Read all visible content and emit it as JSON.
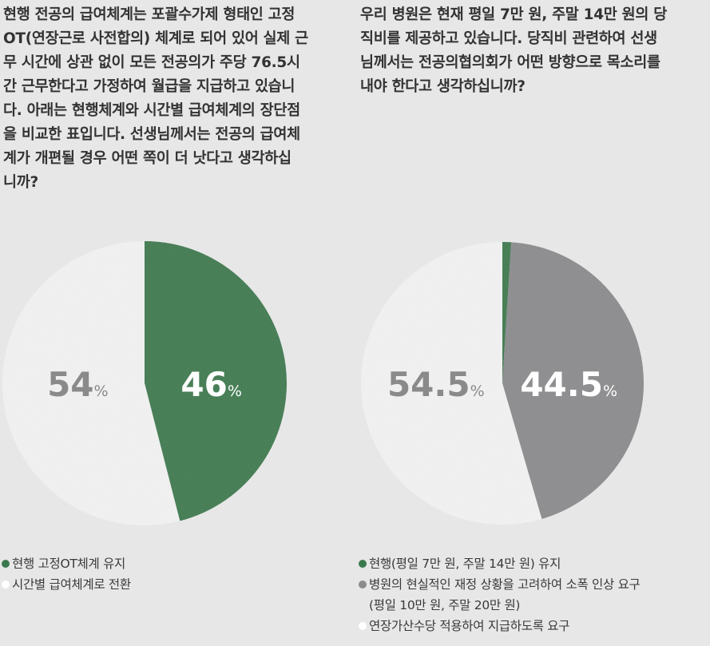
{
  "left": {
    "question_lines": [
      "현행 전공의 급여체계는 포괄수가제 형태인 고정",
      "OT(연장근로 사전합의) 체계로 되어 있어 실제 근",
      "무 시간에 상관 없이 모든 전공의가 주당 76.5시",
      "간 근무한다고 가정하여 월급을 지급하고 있습니",
      "다. 아래는 현행체계와 시간별 급여체계의 장단점",
      "을 비교한 표입니다. 선생님께서는 전공의 급여체",
      "계가 개편될 경우 어떤 쪽이 더 낫다고 생각하십",
      "니까?"
    ]
  },
  "right": {
    "question_lines": [
      "우리 병원은 현재 평일 7만 원, 주말 14만 원의 당",
      "직비를 제공하고 있습니다. 당직비 관련하여 선생",
      "님께서는 전공의협의회가 어떤 방향으로 목소리를",
      "내야 한다고 생각하십니까?"
    ]
  },
  "chart_data": [
    {
      "type": "pie",
      "slices": [
        {
          "label": "현행 고정OT체계 유지",
          "value": 46,
          "display": "46",
          "color": "#3b7a4e",
          "label_color": "#ffffff"
        },
        {
          "label": "시간별 급여체계로 전환",
          "value": 54,
          "display": "54",
          "color": "#f2f2f2",
          "label_color": "#8a8a8a"
        }
      ],
      "unit": "%",
      "legend": [
        {
          "lines": [
            "현행 고정OT체계 유지"
          ],
          "color": "#3b7a4e"
        },
        {
          "lines": [
            "시간별 급여체계로 전환"
          ],
          "color": "#ffffff"
        }
      ]
    },
    {
      "type": "pie",
      "slices": [
        {
          "label": "현행(평일 7만 원, 주말 14만 원) 유지",
          "value": 1,
          "display": "",
          "color": "#3b7a4e",
          "label_color": "#ffffff"
        },
        {
          "label": "병원의 현실적인 재정 상황을 고려하여 소폭 인상 요구 (평일 10만 원, 주말 20만 원)",
          "value": 44.5,
          "display": "44.5",
          "color": "#8c8c8e",
          "label_color": "#ffffff"
        },
        {
          "label": "연장가산수당 적용하여 지급하도록 요구",
          "value": 54.5,
          "display": "54.5",
          "color": "#f2f2f2",
          "label_color": "#8a8a8a"
        }
      ],
      "unit": "%",
      "legend": [
        {
          "lines": [
            "현행(평일 7만 원, 주말 14만 원) 유지"
          ],
          "color": "#3b7a4e"
        },
        {
          "lines": [
            "병원의 현실적인 재정 상황을 고려하여 소폭 인상 요구",
            "(평일 10만 원, 주말 20만 원)"
          ],
          "color": "#8c8c8e"
        },
        {
          "lines": [
            "연장가산수당 적용하여 지급하도록 요구"
          ],
          "color": "#ffffff"
        }
      ]
    }
  ]
}
